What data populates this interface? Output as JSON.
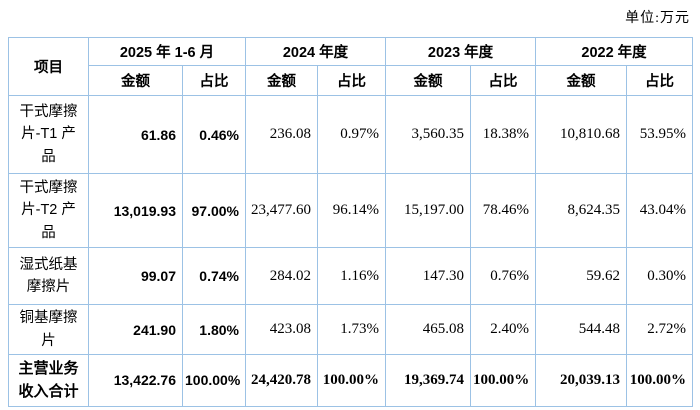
{
  "unit_label": "单位:万元",
  "colors": {
    "border": "#9CC2E5",
    "text": "#000000",
    "background": "#FFFFFF"
  },
  "table": {
    "item_header": "项目",
    "period_groups": [
      {
        "label": "2025 年 1-6 月",
        "amount_label": "金额",
        "ratio_label": "占比"
      },
      {
        "label": "2024 年度",
        "amount_label": "金额",
        "ratio_label": "占比"
      },
      {
        "label": "2023 年度",
        "amount_label": "金额",
        "ratio_label": "占比"
      },
      {
        "label": "2022 年度",
        "amount_label": "金额",
        "ratio_label": "占比"
      }
    ],
    "rows": [
      {
        "item": "干式摩擦片-T1 产品",
        "values": [
          "61.86",
          "0.46%",
          "236.08",
          "0.97%",
          "3,560.35",
          "18.38%",
          "10,810.68",
          "53.95%"
        ]
      },
      {
        "item": "干式摩擦片-T2 产品",
        "values": [
          "13,019.93",
          "97.00%",
          "23,477.60",
          "96.14%",
          "15,197.00",
          "78.46%",
          "8,624.35",
          "43.04%"
        ]
      },
      {
        "item": "湿式纸基摩擦片",
        "values": [
          "99.07",
          "0.74%",
          "284.02",
          "1.16%",
          "147.30",
          "0.76%",
          "59.62",
          "0.30%"
        ]
      },
      {
        "item": "铜基摩擦片",
        "values": [
          "241.90",
          "1.80%",
          "423.08",
          "1.73%",
          "465.08",
          "2.40%",
          "544.48",
          "2.72%"
        ]
      },
      {
        "item": "主营业务收入合计",
        "is_total": true,
        "values": [
          "13,422.76",
          "100.00%",
          "24,420.78",
          "100.00%",
          "19,369.74",
          "100.00%",
          "20,039.13",
          "100.00%"
        ]
      }
    ]
  }
}
